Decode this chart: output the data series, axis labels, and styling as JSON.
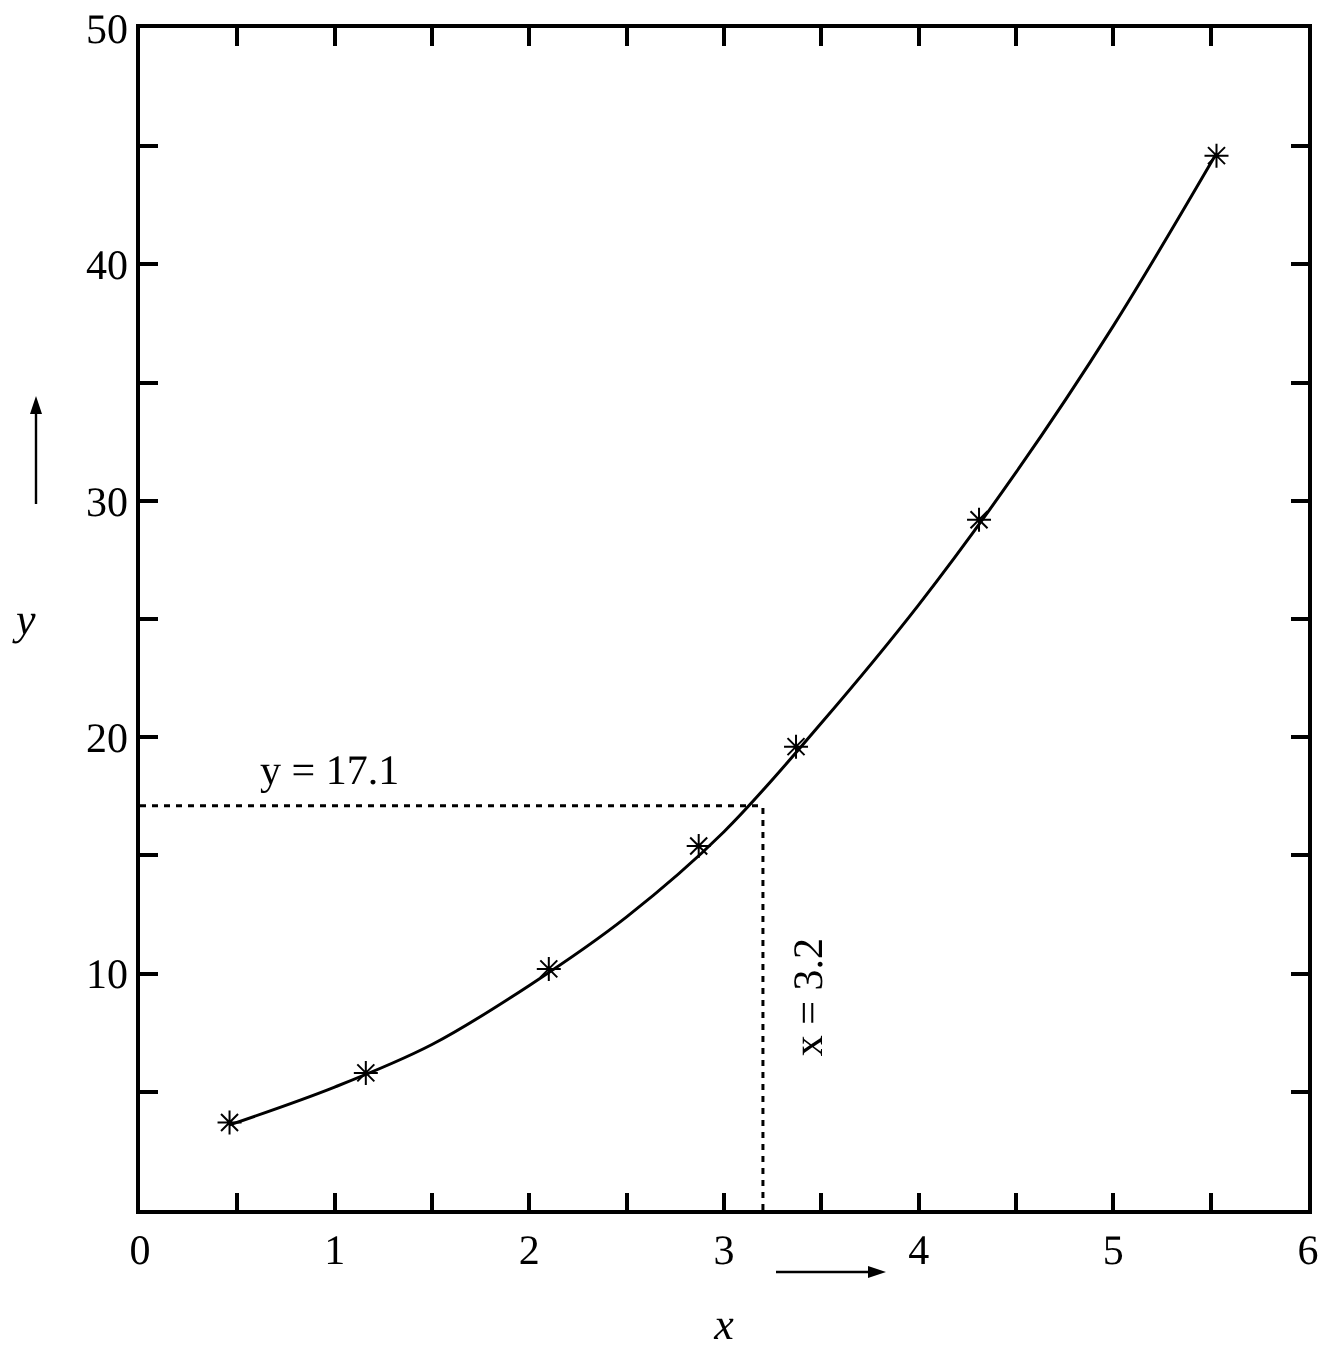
{
  "chart_data": {
    "type": "scatter",
    "xlabel": "x",
    "ylabel": "y",
    "marker": "cross",
    "series": [
      {
        "color": "#000000",
        "x": [
          0.46,
          1.16,
          2.1,
          2.87,
          3.37,
          4.31,
          5.53
        ],
        "values": [
          3.7,
          5.8,
          10.2,
          15.4,
          19.6,
          29.2,
          44.6
        ]
      },
      {
        "type": "line",
        "color": "#000000",
        "marker": "none",
        "x": [
          0.46,
          1.0,
          1.5,
          2.0,
          2.5,
          3.0,
          3.5,
          4.0,
          4.5,
          5.0,
          5.53
        ],
        "values": [
          3.6,
          5.2,
          7.0,
          9.5,
          12.4,
          16.0,
          20.6,
          25.6,
          31.2,
          37.4,
          44.7
        ]
      }
    ],
    "xlim": [
      0,
      6
    ],
    "xticks": [
      0,
      {
        "value": 0.5,
        "label": null
      },
      1,
      {
        "value": 1.5,
        "label": null
      },
      2,
      {
        "value": 2.5,
        "label": null
      },
      3,
      {
        "value": 3.5,
        "label": null
      },
      4,
      {
        "value": 4.5,
        "label": null
      },
      5,
      {
        "value": 5.5,
        "label": null
      },
      6
    ],
    "ylim": [
      0,
      50
    ],
    "yticks": [
      {
        "value": 5,
        "label": null
      },
      10,
      {
        "value": 15,
        "label": null
      },
      20,
      {
        "value": 25,
        "label": null
      },
      30,
      {
        "value": 35,
        "label": null
      },
      40,
      {
        "value": 45,
        "label": null
      },
      50
    ],
    "ref_lines": [
      {
        "axis": "y",
        "value": 17.1,
        "line_style": "dotted",
        "color": "#000000"
      },
      {
        "axis": "x",
        "value": 3.2,
        "line_style": "dotted",
        "color": "#000000"
      }
    ],
    "annotations": [
      {
        "text": "y = 17.1",
        "x": 0.6,
        "y": 17.1
      },
      {
        "text": "x = 3.2",
        "x": 3.2,
        "y": 9
      }
    ]
  }
}
